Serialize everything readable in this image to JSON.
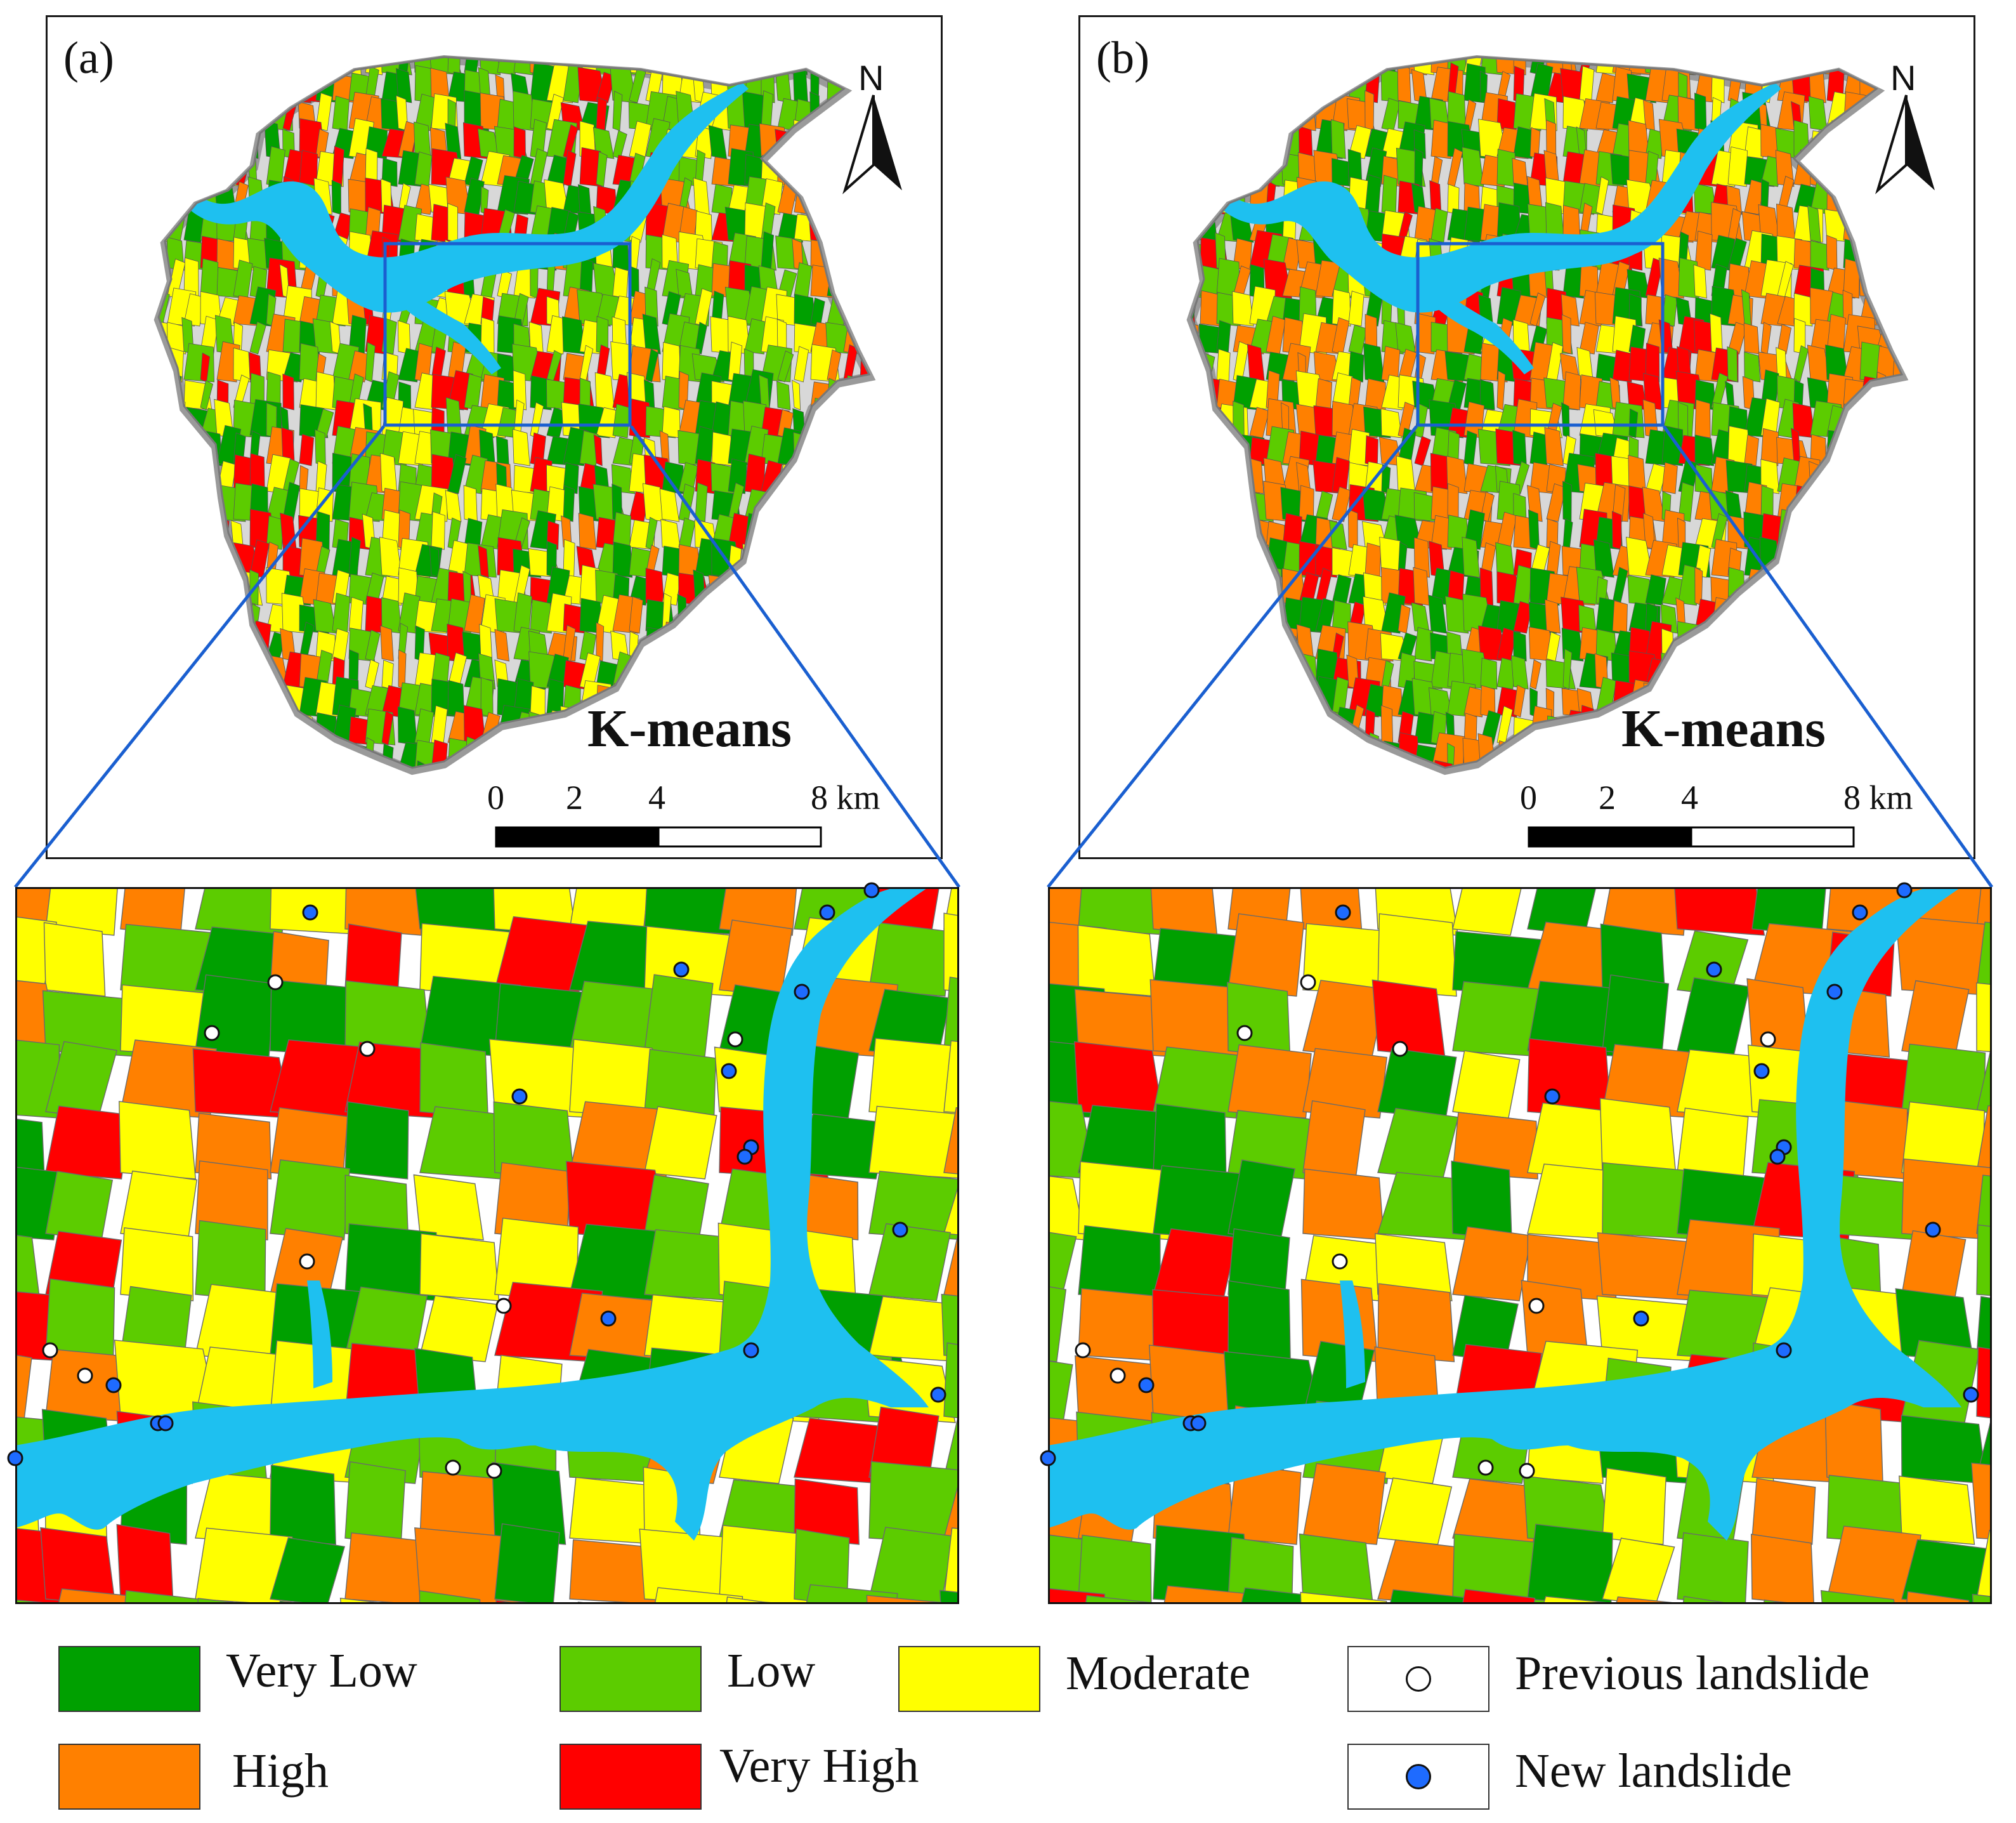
{
  "panels": [
    {
      "id": "a",
      "label": "(a)",
      "method": "K-means",
      "scheme": "a"
    },
    {
      "id": "b",
      "label": "(b)",
      "method": "K-means",
      "scheme": "b"
    }
  ],
  "north_arrow": {
    "letter": "N"
  },
  "scale_bar": {
    "ticks": [
      "0",
      "2",
      "4",
      "8 km"
    ]
  },
  "legend": {
    "classes": [
      {
        "key": "very_low",
        "label": "Very Low",
        "color": "#00a000"
      },
      {
        "key": "low",
        "label": "Low",
        "color": "#5ccc00"
      },
      {
        "key": "moderate",
        "label": "Moderate",
        "color": "#ffff00"
      },
      {
        "key": "high",
        "label": "High",
        "color": "#ff8000"
      },
      {
        "key": "very_high",
        "label": "Very High",
        "color": "#ff0000"
      }
    ],
    "markers": [
      {
        "key": "previous",
        "label": "Previous landslide",
        "color": "#ffffff"
      },
      {
        "key": "new",
        "label": "New landslide",
        "color": "#1e6bff"
      }
    ]
  },
  "colors": {
    "water": "#1ec0f0",
    "inset_frame": "#1a5fd0",
    "border": "#1a1a1a"
  }
}
